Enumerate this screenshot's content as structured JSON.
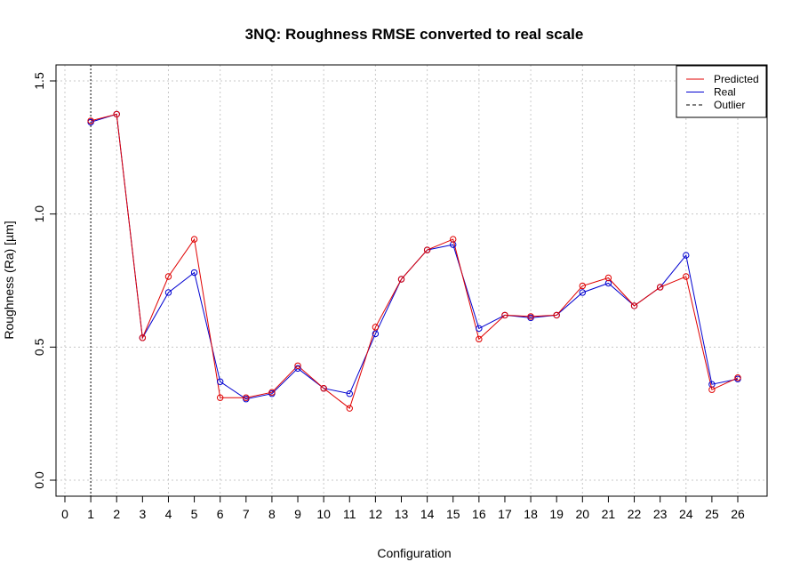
{
  "chart_data": {
    "type": "line",
    "title": "3NQ: Roughness RMSE converted to real scale",
    "xlabel": "Configuration",
    "ylabel": "Roughness (Ra) [µm]",
    "x": [
      1,
      2,
      3,
      4,
      5,
      6,
      7,
      8,
      9,
      10,
      11,
      12,
      13,
      14,
      15,
      16,
      17,
      18,
      19,
      20,
      21,
      22,
      23,
      24,
      25,
      26
    ],
    "xlim": [
      0,
      26
    ],
    "ylim": [
      0,
      1.5
    ],
    "x_ticks": [
      "0",
      "1",
      "2",
      "3",
      "4",
      "5",
      "6",
      "7",
      "8",
      "9",
      "10",
      "11",
      "12",
      "13",
      "14",
      "15",
      "16",
      "17",
      "18",
      "19",
      "20",
      "21",
      "22",
      "23",
      "24",
      "25",
      "26"
    ],
    "y_ticks": [
      "0.0",
      "0.5",
      "1.0",
      "1.5"
    ],
    "grid": true,
    "legend_position": "top-right",
    "series": [
      {
        "name": "Predicted",
        "color": "#e00000",
        "values": [
          1.35,
          1.375,
          0.535,
          0.765,
          0.905,
          0.31,
          0.31,
          0.33,
          0.43,
          0.345,
          0.27,
          0.575,
          0.755,
          0.865,
          0.905,
          0.53,
          0.62,
          0.615,
          0.62,
          0.73,
          0.76,
          0.655,
          0.725,
          0.765,
          0.34,
          0.385
        ]
      },
      {
        "name": "Real",
        "color": "#0000d0",
        "values": [
          1.345,
          1.375,
          0.535,
          0.705,
          0.78,
          0.37,
          0.305,
          0.325,
          0.42,
          0.345,
          0.325,
          0.55,
          0.755,
          0.865,
          0.885,
          0.57,
          0.62,
          0.61,
          0.62,
          0.705,
          0.74,
          0.655,
          0.725,
          0.845,
          0.36,
          0.38
        ]
      }
    ],
    "outlier": {
      "name": "Outlier",
      "x": 1,
      "color": "#000000"
    }
  }
}
